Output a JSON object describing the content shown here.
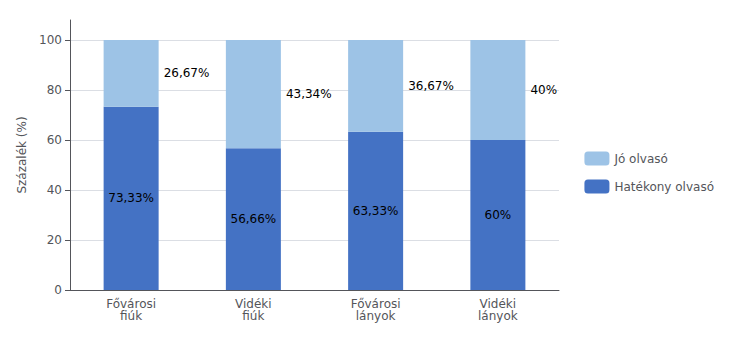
{
  "chart_data": {
    "type": "bar",
    "stacked": true,
    "categories": [
      "Fővárosi\nfiúk",
      "Vidéki\nfiúk",
      "Fővárosi\nlányok",
      "Vidéki\nlányok"
    ],
    "ylabel": "Százalék (%)",
    "series": [
      {
        "name": "Hatékony olvasó",
        "color": "#4472C4",
        "values": [
          73.33,
          56.66,
          63.33,
          60.0
        ],
        "value_labels": [
          "73,33%",
          "56,66%",
          "63,33%",
          "60%"
        ]
      },
      {
        "name": "Jó olvasó",
        "color": "#9DC3E6",
        "values": [
          26.67,
          43.34,
          36.67,
          40.0
        ],
        "value_labels": [
          "26,67%",
          "43,34%",
          "36,67%",
          "40%"
        ]
      }
    ],
    "ylim": [
      0,
      108
    ],
    "yticks": [
      0,
      20,
      40,
      60,
      80,
      100
    ],
    "grid": true,
    "legend": "right",
    "data_labels": true
  }
}
